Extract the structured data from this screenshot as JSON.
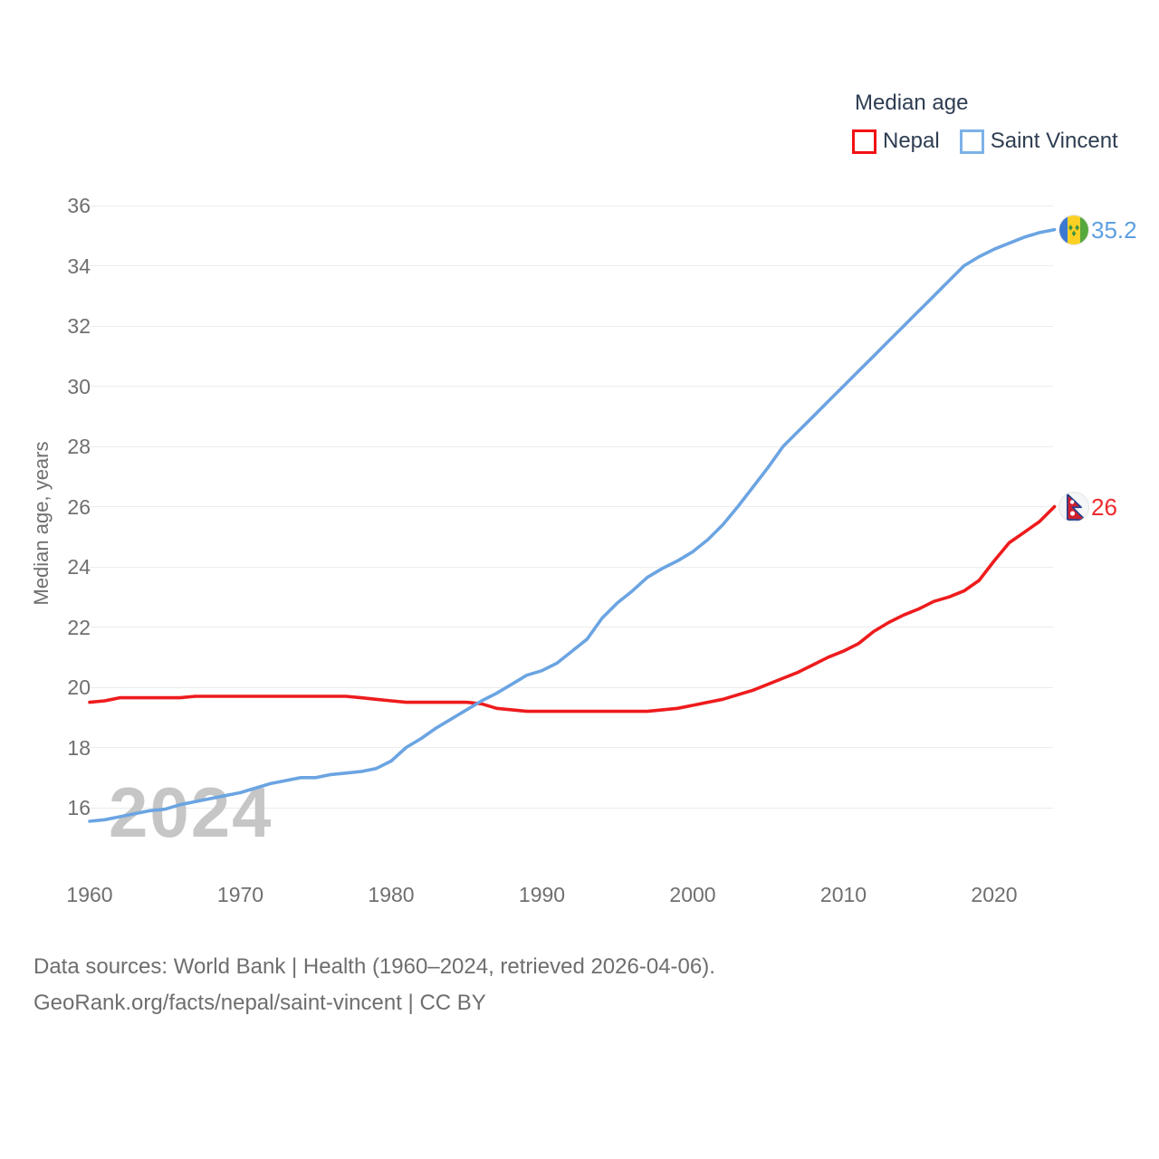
{
  "legend": {
    "title": "Median age",
    "items": [
      {
        "label": "Nepal",
        "color": "#ee1b1d"
      },
      {
        "label": "Saint Vincent",
        "color": "#7db1e8"
      }
    ]
  },
  "watermark": "2024",
  "footer": {
    "line1": "Data sources: World Bank | Health (1960–2024, retrieved 2026-04-06).",
    "line2": "GeoRank.org/facts/nepal/saint-vincent | CC BY"
  },
  "chart_data": {
    "type": "line",
    "title": "Median age",
    "xlabel": "",
    "ylabel": "Median age, years",
    "xlim": [
      1960,
      2024
    ],
    "ylim": [
      15,
      36
    ],
    "grid": "horizontal",
    "legend_position": "top-right",
    "y_ticks": [
      16,
      18,
      20,
      22,
      24,
      26,
      28,
      30,
      32,
      34,
      36
    ],
    "x_ticks": [
      1960,
      1970,
      1980,
      1990,
      2000,
      2010,
      2020
    ],
    "x": [
      1960,
      1961,
      1962,
      1963,
      1964,
      1965,
      1966,
      1967,
      1968,
      1969,
      1970,
      1971,
      1972,
      1973,
      1974,
      1975,
      1976,
      1977,
      1978,
      1979,
      1980,
      1981,
      1982,
      1983,
      1984,
      1985,
      1986,
      1987,
      1988,
      1989,
      1990,
      1991,
      1992,
      1993,
      1994,
      1995,
      1996,
      1997,
      1998,
      1999,
      2000,
      2001,
      2002,
      2003,
      2004,
      2005,
      2006,
      2007,
      2008,
      2009,
      2010,
      2011,
      2012,
      2013,
      2014,
      2015,
      2016,
      2017,
      2018,
      2019,
      2020,
      2021,
      2022,
      2023,
      2024
    ],
    "series": [
      {
        "name": "Nepal",
        "color": "#ee1b1d",
        "end_label": "26",
        "flag": "nepal",
        "values": [
          19.5,
          19.55,
          19.65,
          19.65,
          19.65,
          19.65,
          19.65,
          19.7,
          19.7,
          19.7,
          19.7,
          19.7,
          19.7,
          19.7,
          19.7,
          19.7,
          19.7,
          19.7,
          19.65,
          19.6,
          19.55,
          19.5,
          19.5,
          19.5,
          19.5,
          19.5,
          19.45,
          19.3,
          19.25,
          19.2,
          19.2,
          19.2,
          19.2,
          19.2,
          19.2,
          19.2,
          19.2,
          19.2,
          19.25,
          19.3,
          19.4,
          19.5,
          19.6,
          19.75,
          19.9,
          20.1,
          20.3,
          20.5,
          20.75,
          21.0,
          21.2,
          21.45,
          21.85,
          22.15,
          22.4,
          22.6,
          22.85,
          23.0,
          23.2,
          23.55,
          24.2,
          24.8,
          25.15,
          25.5,
          26.0
        ]
      },
      {
        "name": "Saint Vincent",
        "color": "#6ba4e2",
        "end_label": "35.2",
        "flag": "saint-vincent",
        "values": [
          15.55,
          15.6,
          15.7,
          15.8,
          15.9,
          15.95,
          16.1,
          16.2,
          16.3,
          16.4,
          16.5,
          16.65,
          16.8,
          16.9,
          17.0,
          17.0,
          17.1,
          17.15,
          17.2,
          17.3,
          17.55,
          18.0,
          18.3,
          18.65,
          18.95,
          19.25,
          19.55,
          19.8,
          20.1,
          20.4,
          20.55,
          20.8,
          21.2,
          21.6,
          22.3,
          22.8,
          23.2,
          23.65,
          23.95,
          24.2,
          24.5,
          24.9,
          25.4,
          26.0,
          26.65,
          27.3,
          28.0,
          28.5,
          29.0,
          29.5,
          30.0,
          30.5,
          31.0,
          31.5,
          32.0,
          32.5,
          33.0,
          33.5,
          34.0,
          34.3,
          34.55,
          34.75,
          34.95,
          35.1,
          35.2
        ]
      }
    ]
  }
}
